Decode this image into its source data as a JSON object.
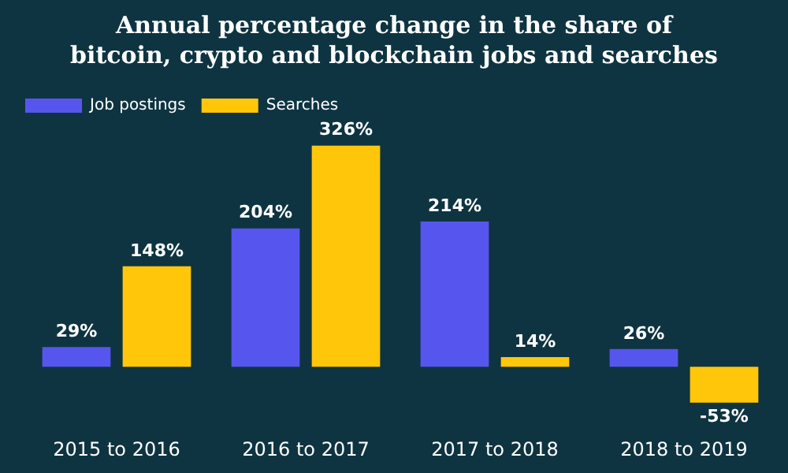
{
  "chart_data": {
    "type": "bar",
    "title": "Annual percentage change in the share of bitcoin, crypto and blockchain jobs and searches",
    "categories": [
      "2015 to 2016",
      "2016 to 2017",
      "2017 to 2018",
      "2018 to 2019"
    ],
    "series": [
      {
        "name": "Job postings",
        "color": "#5656ee",
        "values": [
          29,
          204,
          214,
          26
        ],
        "value_labels": [
          "29%",
          "204%",
          "214%",
          "26%"
        ]
      },
      {
        "name": "Searches",
        "color": "#ffc60a",
        "values": [
          148,
          326,
          14,
          -53
        ],
        "value_labels": [
          "148%",
          "326%",
          "14%",
          "-53%"
        ]
      }
    ],
    "relative": false,
    "grid": false,
    "legend": "top left"
  }
}
